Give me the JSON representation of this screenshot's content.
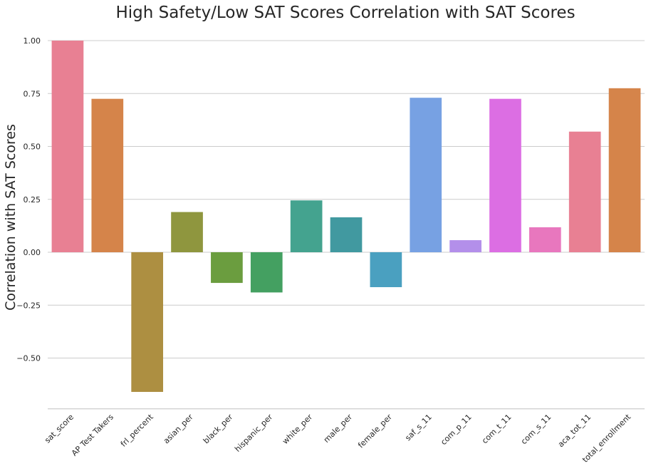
{
  "chart_data": {
    "type": "bar",
    "title": "High Safety/Low SAT Scores Correlation with SAT Scores",
    "xlabel": "",
    "ylabel": "Correlation with SAT Scores",
    "ylim": [
      -0.74,
      1.02
    ],
    "yticks": [
      -0.5,
      -0.25,
      0.0,
      0.25,
      0.5,
      0.75,
      1.0
    ],
    "ytick_labels": [
      "−0.50",
      "−0.25",
      "0.00",
      "0.25",
      "0.50",
      "0.75",
      "1.00"
    ],
    "grid": true,
    "categories": [
      "sat_score",
      "AP Test Takers",
      "frl_percent",
      "asian_per",
      "black_per",
      "hispanic_per",
      "white_per",
      "male_per",
      "female_per",
      "saf_s_11",
      "com_p_11",
      "com_t_11",
      "com_s_11",
      "aca_tot_11",
      "total_enrollment"
    ],
    "values": [
      1.0,
      0.725,
      -0.66,
      0.19,
      -0.145,
      -0.19,
      0.245,
      0.165,
      -0.165,
      0.73,
      0.057,
      0.725,
      0.118,
      0.57,
      0.775
    ],
    "colors": [
      "#e88093",
      "#d5844a",
      "#ad8f41",
      "#8f963e",
      "#6b9d3f",
      "#44a061",
      "#44a38f",
      "#4199a0",
      "#4aa0c0",
      "#77a1e3",
      "#b38fea",
      "#dc6ee3",
      "#e877be",
      "#e88093",
      "#d5844a"
    ]
  }
}
